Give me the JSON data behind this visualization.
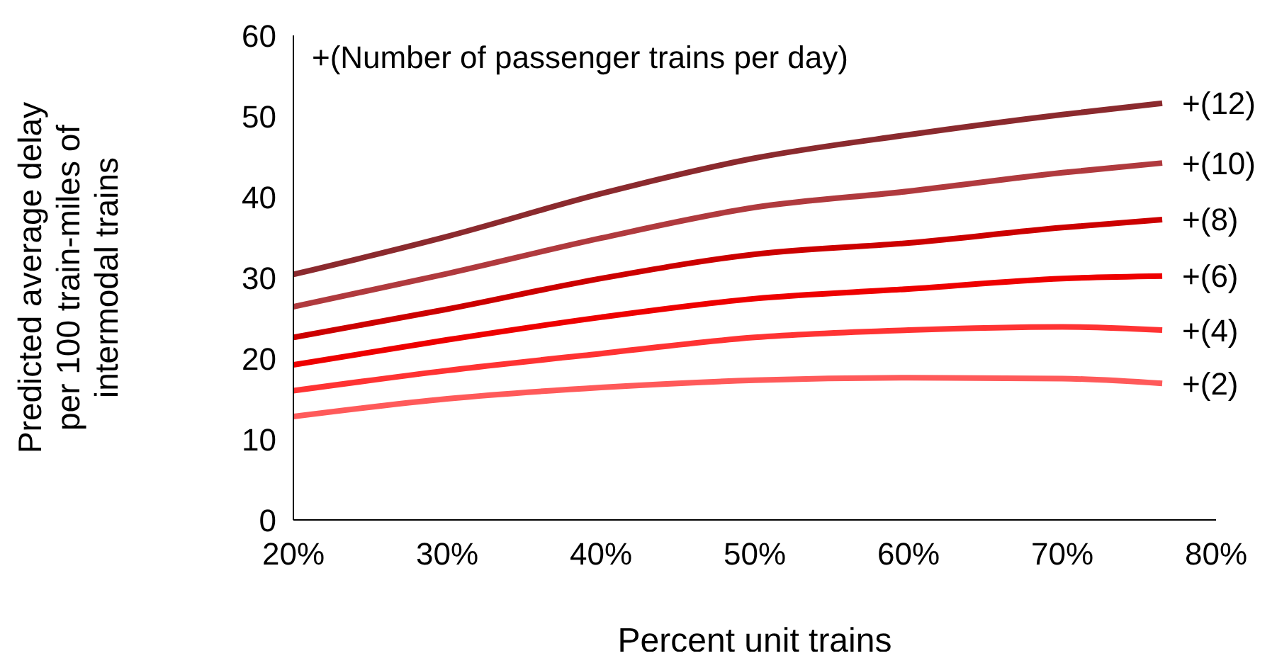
{
  "chart_data": {
    "type": "line",
    "xlabel": "Percent unit trains",
    "ylabel": "Predicted average delay per 100 train-miles of intermodal trains",
    "annotations": [
      "+(Number of passenger trains per day)"
    ],
    "x": [
      20,
      30,
      40,
      50,
      60,
      70,
      76.5
    ],
    "xlim": [
      20,
      80
    ],
    "xticks": [
      {
        "value": 20,
        "label": "20%"
      },
      {
        "value": 30,
        "label": "30%"
      },
      {
        "value": 40,
        "label": "40%"
      },
      {
        "value": 50,
        "label": "50%"
      },
      {
        "value": 60,
        "label": "60%"
      },
      {
        "value": 70,
        "label": "70%"
      },
      {
        "value": 80,
        "label": "80%"
      }
    ],
    "ylim": [
      0,
      60
    ],
    "yticks": [
      0,
      10,
      20,
      30,
      40,
      50,
      60
    ],
    "grid": false,
    "legend": false,
    "marker": "none",
    "line_style": "solid",
    "series": [
      {
        "name": "+(12)",
        "color": "#8b2a2e",
        "values": [
          30.4,
          35.1,
          40.4,
          44.8,
          47.7,
          50.2,
          51.6
        ]
      },
      {
        "name": "+(10)",
        "color": "#b03a3e",
        "values": [
          26.4,
          30.5,
          34.9,
          38.7,
          40.7,
          43.0,
          44.2
        ]
      },
      {
        "name": "+(8)",
        "color": "#cc0000",
        "values": [
          22.6,
          26.1,
          29.9,
          32.9,
          34.3,
          36.2,
          37.2
        ]
      },
      {
        "name": "+(6)",
        "color": "#ee0000",
        "values": [
          19.2,
          22.3,
          25.1,
          27.4,
          28.6,
          29.9,
          30.2
        ]
      },
      {
        "name": "+(4)",
        "color": "#ff3333",
        "values": [
          16.0,
          18.5,
          20.6,
          22.6,
          23.5,
          23.9,
          23.5
        ]
      },
      {
        "name": "+(2)",
        "color": "#ff5a5a",
        "values": [
          12.8,
          15.0,
          16.4,
          17.3,
          17.6,
          17.5,
          16.9
        ]
      }
    ]
  }
}
